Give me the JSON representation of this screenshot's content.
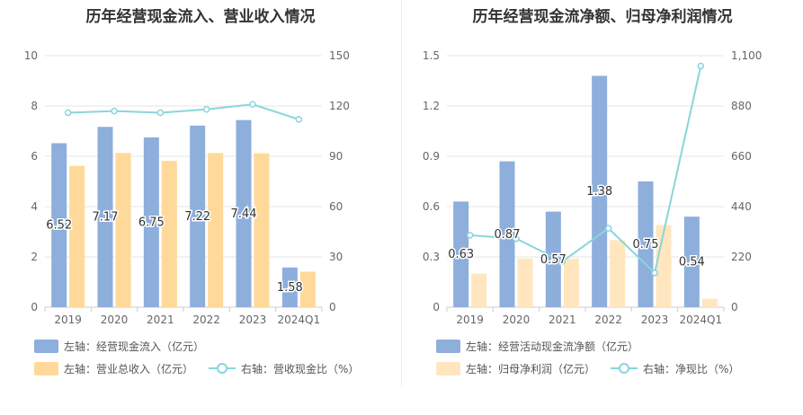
{
  "charts": [
    {
      "title": "历年经营现金流入、营业收入情况",
      "chart_data": {
        "type": "bar",
        "categories": [
          "2019",
          "2020",
          "2021",
          "2022",
          "2023",
          "2024Q1"
        ],
        "left_axis": {
          "min": 0,
          "max": 10,
          "ticks": [
            "0",
            "2",
            "4",
            "6",
            "8",
            "10"
          ]
        },
        "right_axis": {
          "min": 0,
          "max": 150,
          "ticks": [
            "0",
            "30",
            "60",
            "90",
            "120",
            "150"
          ]
        },
        "series": [
          {
            "name": "左轴：经营现金流入（亿元）",
            "type": "bar",
            "axis": "left",
            "color": "#8eaedc",
            "values": [
              6.52,
              7.17,
              6.75,
              7.22,
              7.44,
              1.58
            ],
            "labels": [
              "6.52",
              "7.17",
              "6.75",
              "7.22",
              "7.44",
              "1.58"
            ]
          },
          {
            "name": "左轴：营业总收入（亿元）",
            "type": "bar",
            "axis": "left",
            "color": "#ffd99a",
            "values": [
              5.62,
              6.13,
              5.82,
              6.13,
              6.12,
              1.41
            ]
          },
          {
            "name": "右轴：营收现金比（%）",
            "type": "line",
            "axis": "right",
            "color": "#89d5dc",
            "values": [
              116,
              117,
              116,
              118,
              121,
              112
            ]
          }
        ],
        "grid": true,
        "legend": "bottom"
      }
    },
    {
      "title": "历年经营现金流净额、归母净利润情况",
      "chart_data": {
        "type": "bar",
        "categories": [
          "2019",
          "2020",
          "2021",
          "2022",
          "2023",
          "2024Q1"
        ],
        "left_axis": {
          "min": 0,
          "max": 1.5,
          "ticks": [
            "0",
            "0.3",
            "0.6",
            "0.9",
            "1.2",
            "1.5"
          ]
        },
        "right_axis": {
          "min": 0,
          "max": 1100,
          "ticks": [
            "0",
            "220",
            "440",
            "660",
            "880",
            "1,100"
          ]
        },
        "series": [
          {
            "name": "左轴：经营活动现金流净额（亿元）",
            "type": "bar",
            "axis": "left",
            "color": "#8eaedc",
            "values": [
              0.63,
              0.87,
              0.57,
              1.38,
              0.75,
              0.54
            ],
            "labels": [
              "0.63",
              "0.87",
              "0.57",
              "1.38",
              "0.75",
              "0.54"
            ]
          },
          {
            "name": "左轴：归母净利润（亿元）",
            "type": "bar",
            "axis": "left",
            "color": "#ffe6bf",
            "values": [
              0.2,
              0.29,
              0.29,
              0.4,
              0.49,
              0.05
            ]
          },
          {
            "name": "右轴：净现比（%）",
            "type": "line",
            "axis": "right",
            "color": "#89d5dc",
            "values": [
              315,
              300,
              200,
              345,
              150,
              1055
            ]
          }
        ],
        "grid": true,
        "legend": "bottom"
      }
    }
  ]
}
